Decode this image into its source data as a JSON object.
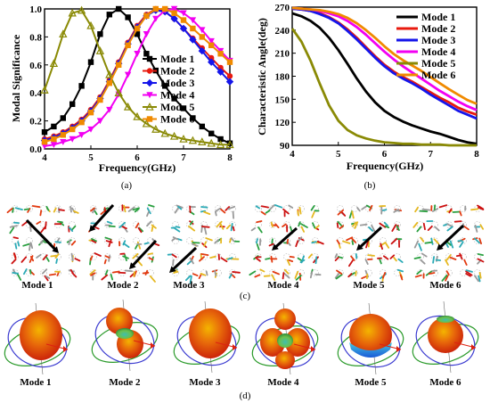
{
  "figure": {
    "panel_labels": [
      "(a)",
      "(b)",
      "(c)",
      "(d)"
    ],
    "current_mode_labels": [
      "Mode 1",
      "Mode 2",
      "Mode 3",
      "Mode 4",
      "Mode 5",
      "Mode 6"
    ],
    "pattern_mode_labels": [
      "Mode 1",
      "Mode 2",
      "Mode 3",
      "Mode 4",
      "Mode 5",
      "Mode 6"
    ]
  },
  "colors": {
    "mode1": "#000000",
    "mode2": "#e8190e",
    "mode3": "#1515ea",
    "mode4": "#f200f2",
    "mode5": "#8a8a05",
    "mode6": "#f08a00"
  },
  "chart_data": [
    {
      "type": "line",
      "panel": "(a)",
      "xlabel": "Frequency(GHz)",
      "ylabel": "Modal Significance",
      "xlim": [
        4,
        8
      ],
      "ylim": [
        0,
        1.0
      ],
      "xticks": [
        "4",
        "5",
        "6",
        "7",
        "8"
      ],
      "yticks": [
        "0.0",
        "0.2",
        "0.4",
        "0.6",
        "0.8",
        "1.0"
      ],
      "legend_position": "right",
      "x": [
        4.0,
        4.2,
        4.4,
        4.6,
        4.8,
        5.0,
        5.2,
        5.4,
        5.6,
        5.8,
        6.0,
        6.2,
        6.4,
        6.6,
        6.8,
        7.0,
        7.2,
        7.4,
        7.6,
        7.8,
        8.0
      ],
      "series": [
        {
          "name": "Mode 1",
          "marker": "square",
          "values": [
            0.12,
            0.16,
            0.22,
            0.32,
            0.45,
            0.62,
            0.82,
            0.96,
            1.0,
            0.94,
            0.82,
            0.68,
            0.56,
            0.45,
            0.36,
            0.29,
            0.22,
            0.16,
            0.11,
            0.07,
            0.04
          ]
        },
        {
          "name": "Mode 2",
          "marker": "circle",
          "values": [
            0.07,
            0.09,
            0.12,
            0.16,
            0.21,
            0.28,
            0.37,
            0.49,
            0.62,
            0.76,
            0.88,
            0.96,
            1.0,
            0.98,
            0.93,
            0.86,
            0.79,
            0.72,
            0.65,
            0.58,
            0.52
          ]
        },
        {
          "name": "Mode 3",
          "marker": "diamond",
          "values": [
            0.06,
            0.08,
            0.11,
            0.15,
            0.2,
            0.27,
            0.36,
            0.48,
            0.61,
            0.75,
            0.87,
            0.95,
            0.99,
            0.98,
            0.93,
            0.86,
            0.78,
            0.7,
            0.62,
            0.55,
            0.48
          ]
        },
        {
          "name": "Mode 4",
          "marker": "triangle-down",
          "values": [
            0.02,
            0.03,
            0.05,
            0.07,
            0.1,
            0.14,
            0.2,
            0.28,
            0.39,
            0.53,
            0.68,
            0.82,
            0.93,
            0.99,
            1.0,
            0.97,
            0.92,
            0.85,
            0.77,
            0.7,
            0.63
          ]
        },
        {
          "name": "Mode 5",
          "marker": "triangle-up",
          "values": [
            0.42,
            0.61,
            0.82,
            0.97,
            0.99,
            0.88,
            0.7,
            0.53,
            0.4,
            0.3,
            0.23,
            0.18,
            0.14,
            0.11,
            0.09,
            0.07,
            0.06,
            0.05,
            0.04,
            0.03,
            0.03
          ]
        },
        {
          "name": "Mode 6",
          "marker": "square",
          "values": [
            0.05,
            0.07,
            0.1,
            0.14,
            0.19,
            0.26,
            0.35,
            0.47,
            0.6,
            0.74,
            0.86,
            0.95,
            1.0,
            1.0,
            0.97,
            0.92,
            0.86,
            0.8,
            0.74,
            0.68,
            0.62
          ]
        }
      ]
    },
    {
      "type": "line",
      "panel": "(b)",
      "xlabel": "Frequency(GHz)",
      "ylabel": "Characteristic Angle(deg)",
      "xlim": [
        4,
        8
      ],
      "ylim": [
        90,
        270
      ],
      "xticks": [
        "4",
        "5",
        "6",
        "7",
        "8"
      ],
      "yticks": [
        "90",
        "120",
        "150",
        "180",
        "210",
        "240",
        "270"
      ],
      "legend_position": "top-right",
      "x": [
        4.0,
        4.2,
        4.4,
        4.6,
        4.8,
        5.0,
        5.2,
        5.4,
        5.6,
        5.8,
        6.0,
        6.2,
        6.4,
        6.6,
        6.8,
        7.0,
        7.2,
        7.4,
        7.6,
        7.8,
        8.0
      ],
      "series": [
        {
          "name": "Mode 1",
          "values": [
            262,
            258,
            252,
            243,
            230,
            214,
            196,
            177,
            160,
            146,
            135,
            127,
            121,
            116,
            112,
            108,
            105,
            101,
            97,
            94,
            92
          ]
        },
        {
          "name": "Mode 2",
          "values": [
            268,
            267,
            265,
            262,
            257,
            250,
            241,
            230,
            218,
            206,
            195,
            186,
            179,
            173,
            166,
            159,
            152,
            146,
            139,
            134,
            130
          ]
        },
        {
          "name": "Mode 3",
          "values": [
            268,
            267,
            265,
            261,
            256,
            249,
            239,
            228,
            216,
            204,
            193,
            184,
            177,
            171,
            164,
            156,
            149,
            142,
            135,
            130,
            125
          ]
        },
        {
          "name": "Mode 4",
          "values": [
            269,
            268,
            267,
            265,
            262,
            258,
            252,
            244,
            234,
            223,
            212,
            202,
            193,
            185,
            177,
            169,
            161,
            154,
            147,
            141,
            136
          ]
        },
        {
          "name": "Mode 5",
          "values": [
            242,
            225,
            200,
            170,
            142,
            122,
            110,
            103,
            99,
            96,
            94,
            93,
            92,
            92,
            91,
            91,
            91,
            90,
            90,
            90,
            90
          ]
        },
        {
          "name": "Mode 6",
          "values": [
            269,
            268,
            267,
            266,
            264,
            261,
            256,
            249,
            240,
            230,
            219,
            209,
            201,
            194,
            187,
            179,
            171,
            163,
            156,
            149,
            144
          ]
        }
      ]
    }
  ]
}
